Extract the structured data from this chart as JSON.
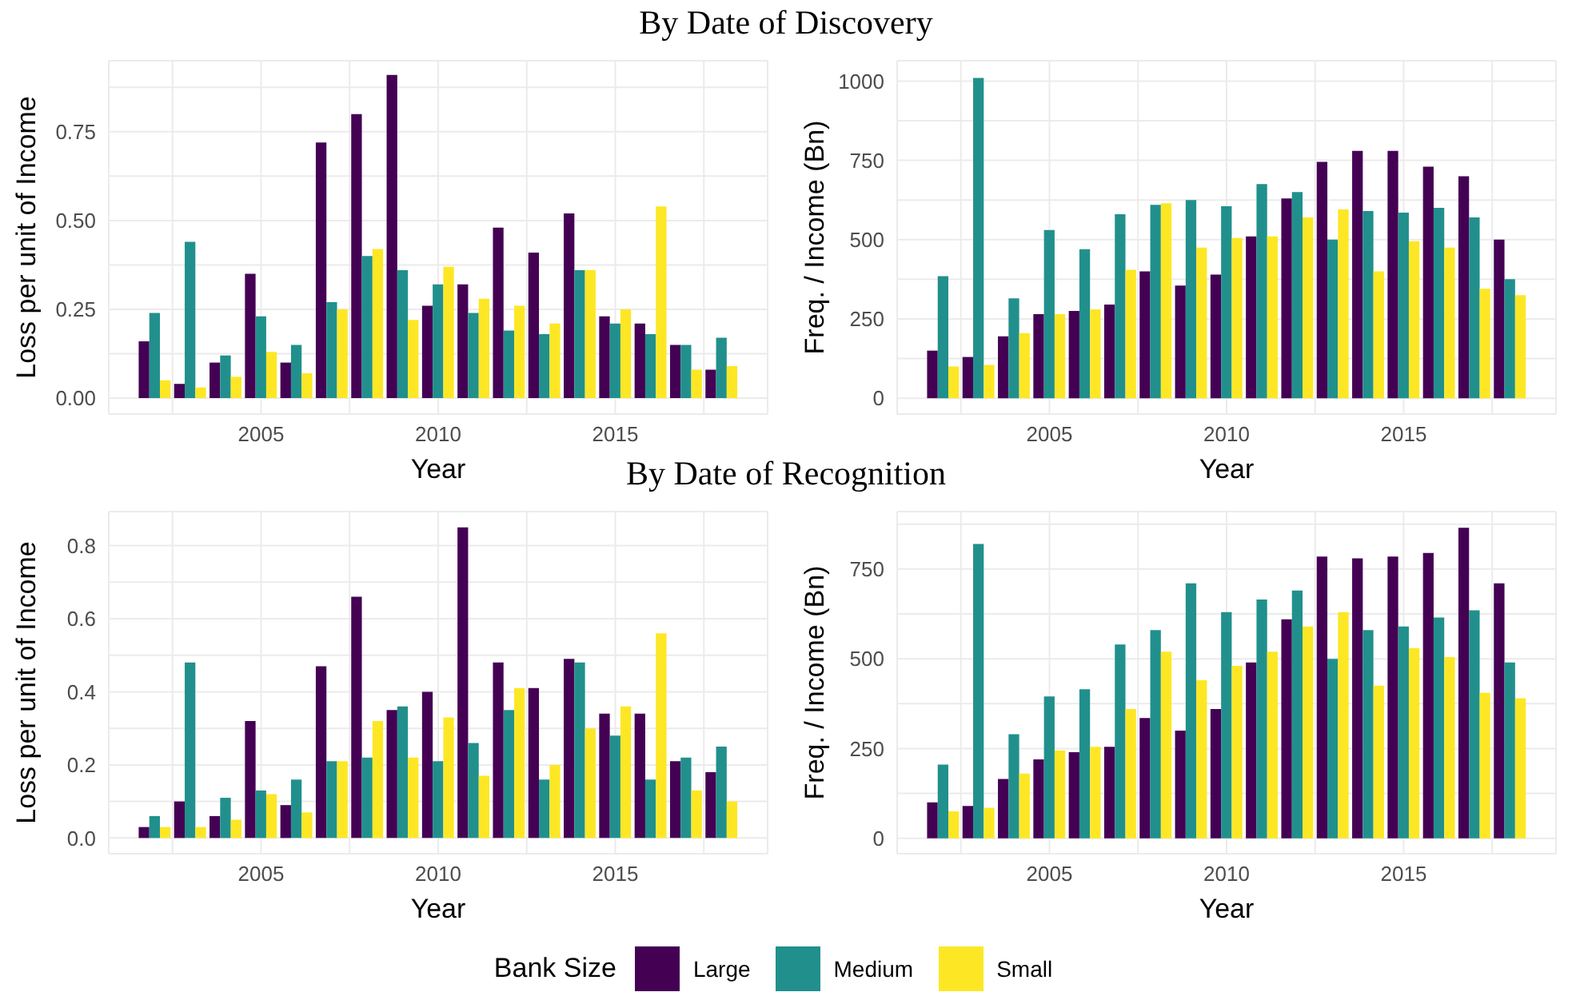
{
  "chart_data": [
    {
      "type": "bar",
      "title": "By Date of Discovery",
      "xlabel": "Year",
      "ylabel": "Loss per unit of Income",
      "grid": true,
      "legend": "bottom",
      "legend_title": "Bank Size",
      "x": [
        2002,
        2003,
        2004,
        2005,
        2006,
        2007,
        2008,
        2009,
        2010,
        2011,
        2012,
        2013,
        2014,
        2015,
        2016,
        2017,
        2018
      ],
      "xlim": [
        2000.7,
        2019.3
      ],
      "xticks": [
        {
          "value": 2002.5,
          "label": null
        },
        2005,
        {
          "value": 2007.5,
          "label": null
        },
        2010,
        {
          "value": 2012.5,
          "label": null
        },
        2015,
        {
          "value": 2017.5,
          "label": null
        }
      ],
      "ylim": [
        -0.045,
        0.95
      ],
      "yticks": [
        {
          "value": 0,
          "label": "0.00"
        },
        {
          "value": 0.125,
          "label": null
        },
        0.25,
        {
          "value": 0.375,
          "label": null
        },
        {
          "value": 0.5,
          "label": "0.50"
        },
        {
          "value": 0.625,
          "label": null
        },
        0.75,
        {
          "value": 0.875,
          "label": null
        }
      ],
      "series": [
        {
          "name": "Large",
          "color": "#440154",
          "values": [
            0.16,
            0.04,
            0.1,
            0.35,
            0.1,
            0.72,
            0.8,
            0.91,
            0.26,
            0.32,
            0.48,
            0.41,
            0.52,
            0.23,
            0.21,
            0.15,
            0.08
          ]
        },
        {
          "name": "Medium",
          "color": "#21908c",
          "values": [
            0.24,
            0.44,
            0.12,
            0.23,
            0.15,
            0.27,
            0.4,
            0.36,
            0.32,
            0.24,
            0.19,
            0.18,
            0.36,
            0.21,
            0.18,
            0.15,
            0.17
          ]
        },
        {
          "name": "Small",
          "color": "#fde725",
          "values": [
            0.05,
            0.03,
            0.06,
            0.13,
            0.07,
            0.25,
            0.42,
            0.22,
            0.37,
            0.28,
            0.26,
            0.21,
            0.36,
            0.25,
            0.54,
            0.08,
            0.09
          ]
        }
      ]
    },
    {
      "type": "bar",
      "xlabel": "Year",
      "ylabel": "Freq. / Income (Bn)",
      "grid": true,
      "x": [
        2002,
        2003,
        2004,
        2005,
        2006,
        2007,
        2008,
        2009,
        2010,
        2011,
        2012,
        2013,
        2014,
        2015,
        2016,
        2017,
        2018
      ],
      "xlim": [
        2000.7,
        2019.3
      ],
      "xticks": [
        {
          "value": 2002.5,
          "label": null
        },
        2005,
        {
          "value": 2007.5,
          "label": null
        },
        2010,
        {
          "value": 2012.5,
          "label": null
        },
        2015,
        {
          "value": 2017.5,
          "label": null
        }
      ],
      "ylim": [
        -50,
        1064
      ],
      "yticks": [
        0,
        {
          "value": 125,
          "label": null
        },
        250,
        {
          "value": 375,
          "label": null
        },
        500,
        {
          "value": 625,
          "label": null
        },
        750,
        {
          "value": 875,
          "label": null
        },
        1000
      ],
      "series": [
        {
          "color": "#440154",
          "values": [
            150,
            130,
            195,
            265,
            275,
            295,
            400,
            355,
            390,
            510,
            630,
            745,
            780,
            780,
            730,
            700,
            500
          ]
        },
        {
          "color": "#21908c",
          "values": [
            385,
            1010,
            315,
            530,
            470,
            580,
            610,
            625,
            605,
            675,
            650,
            500,
            590,
            585,
            600,
            570,
            375
          ]
        },
        {
          "color": "#fde725",
          "values": [
            100,
            105,
            205,
            265,
            280,
            405,
            615,
            475,
            505,
            510,
            570,
            595,
            400,
            495,
            475,
            345,
            325
          ]
        }
      ]
    },
    {
      "type": "bar",
      "title": "By Date of Recognition",
      "xlabel": "Year",
      "ylabel": "Loss per unit of Income",
      "grid": true,
      "x": [
        2002,
        2003,
        2004,
        2005,
        2006,
        2007,
        2008,
        2009,
        2010,
        2011,
        2012,
        2013,
        2014,
        2015,
        2016,
        2017,
        2018
      ],
      "xlim": [
        2000.7,
        2019.3
      ],
      "xticks": [
        {
          "value": 2002.5,
          "label": null
        },
        2005,
        {
          "value": 2007.5,
          "label": null
        },
        2010,
        {
          "value": 2012.5,
          "label": null
        },
        2015,
        {
          "value": 2017.5,
          "label": null
        }
      ],
      "ylim": [
        -0.043,
        0.893
      ],
      "yticks": [
        {
          "value": 0,
          "label": "0.0"
        },
        {
          "value": 0.1,
          "label": null
        },
        0.2,
        {
          "value": 0.3,
          "label": null
        },
        0.4,
        {
          "value": 0.5,
          "label": null
        },
        0.6,
        {
          "value": 0.7,
          "label": null
        },
        0.8
      ],
      "series": [
        {
          "color": "#440154",
          "values": [
            0.03,
            0.1,
            0.06,
            0.32,
            0.09,
            0.47,
            0.66,
            0.35,
            0.4,
            0.85,
            0.48,
            0.41,
            0.49,
            0.34,
            0.34,
            0.21,
            0.18
          ]
        },
        {
          "color": "#21908c",
          "values": [
            0.06,
            0.48,
            0.11,
            0.13,
            0.16,
            0.21,
            0.22,
            0.36,
            0.21,
            0.26,
            0.35,
            0.16,
            0.48,
            0.28,
            0.16,
            0.22,
            0.25
          ]
        },
        {
          "color": "#fde725",
          "values": [
            0.03,
            0.03,
            0.05,
            0.12,
            0.07,
            0.21,
            0.32,
            0.22,
            0.33,
            0.17,
            0.41,
            0.2,
            0.3,
            0.36,
            0.56,
            0.13,
            0.1
          ]
        }
      ]
    },
    {
      "type": "bar",
      "xlabel": "Year",
      "ylabel": "Freq. / Income (Bn)",
      "grid": true,
      "x": [
        2002,
        2003,
        2004,
        2005,
        2006,
        2007,
        2008,
        2009,
        2010,
        2011,
        2012,
        2013,
        2014,
        2015,
        2016,
        2017,
        2018
      ],
      "xlim": [
        2000.7,
        2019.3
      ],
      "xticks": [
        {
          "value": 2002.5,
          "label": null
        },
        2005,
        {
          "value": 2007.5,
          "label": null
        },
        2010,
        {
          "value": 2012.5,
          "label": null
        },
        2015,
        {
          "value": 2017.5,
          "label": null
        }
      ],
      "ylim": [
        -43,
        910
      ],
      "yticks": [
        0,
        {
          "value": 125,
          "label": null
        },
        250,
        {
          "value": 375,
          "label": null
        },
        500,
        {
          "value": 625,
          "label": null
        },
        750,
        {
          "value": 875,
          "label": null
        }
      ],
      "series": [
        {
          "color": "#440154",
          "values": [
            100,
            90,
            165,
            220,
            240,
            255,
            335,
            300,
            360,
            490,
            610,
            785,
            780,
            785,
            795,
            865,
            710
          ]
        },
        {
          "color": "#21908c",
          "values": [
            205,
            820,
            290,
            395,
            415,
            540,
            580,
            710,
            630,
            665,
            690,
            500,
            580,
            590,
            615,
            635,
            490
          ]
        },
        {
          "color": "#fde725",
          "values": [
            75,
            85,
            180,
            245,
            255,
            360,
            520,
            440,
            480,
            520,
            590,
            630,
            425,
            530,
            505,
            405,
            390
          ]
        }
      ]
    }
  ]
}
